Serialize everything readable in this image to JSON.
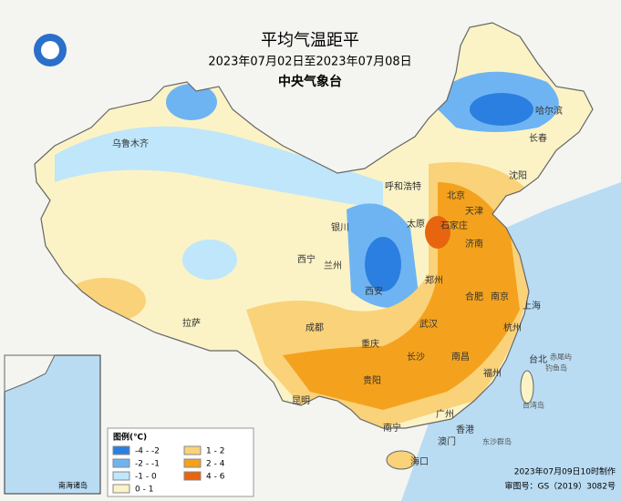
{
  "title": "平均气温距平",
  "subtitle": "2023年07月02日至2023年07月08日",
  "agency": "中央气象台",
  "cities": [
    "乌鲁木齐",
    "哈尔滨",
    "长春",
    "沈阳",
    "呼和浩特",
    "北京",
    "天津",
    "银川",
    "太原",
    "石家庄",
    "济南",
    "西宁",
    "兰州",
    "郑州",
    "西安",
    "合肥",
    "南京",
    "上海",
    "拉萨",
    "成都",
    "武汉",
    "杭州",
    "重庆",
    "长沙",
    "南昌",
    "福州",
    "台北",
    "贵阳",
    "昆明",
    "南宁",
    "广州",
    "香港",
    "澳门",
    "海口",
    "台湾岛",
    "赤尾屿",
    "钓鱼岛",
    "东沙群岛"
  ],
  "legend": {
    "title": "图例(℃)",
    "items": [
      {
        "label": "-4 - -2",
        "color": "#2a7fe0"
      },
      {
        "label": "-2 - -1",
        "color": "#6fb4f2"
      },
      {
        "label": "-1 - 0",
        "color": "#bfe6fb"
      },
      {
        "label": "0 - 1",
        "color": "#fbf3c6"
      },
      {
        "label": "1 - 2",
        "color": "#f9d27a"
      },
      {
        "label": "2 - 4",
        "color": "#f4a21e"
      },
      {
        "label": "4 - 6",
        "color": "#e8650f"
      }
    ]
  },
  "inset": {
    "label": "南海诸岛"
  },
  "footer": {
    "made": "2023年07月09日10时制作",
    "approval": "审图号：GS（2019）3082号"
  }
}
